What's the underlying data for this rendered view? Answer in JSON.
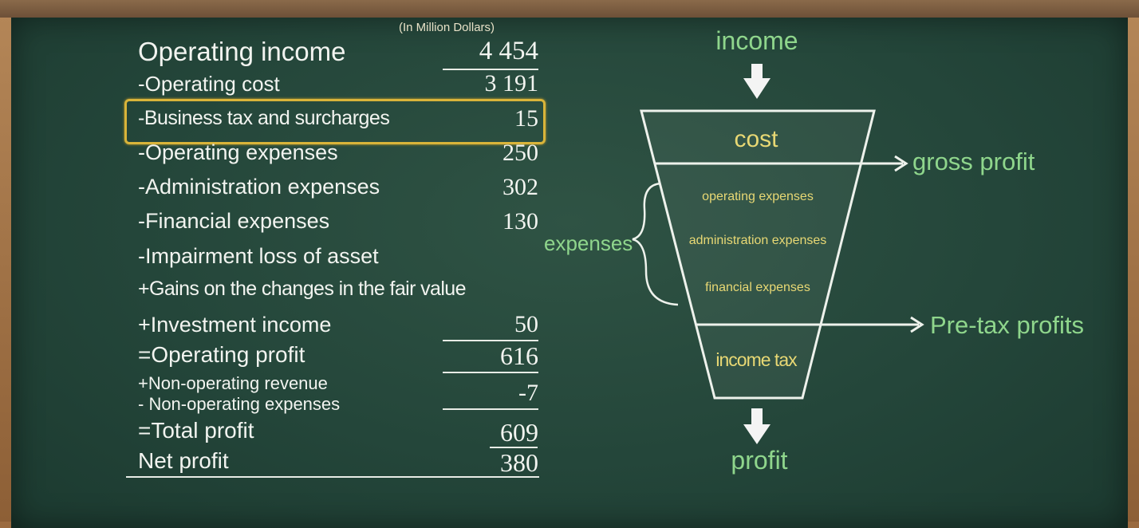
{
  "statement": {
    "unit_note": "(In Million Dollars)",
    "rows": [
      {
        "label": "Operating income",
        "value": "4 454"
      },
      {
        "label": "-Operating cost",
        "value": "3 191"
      },
      {
        "label": "-Business tax and surcharges",
        "value": "15"
      },
      {
        "label": "-Operating expenses",
        "value": "250"
      },
      {
        "label": "-Administration expenses",
        "value": "302"
      },
      {
        "label": "-Financial expenses",
        "value": "130"
      },
      {
        "label": "-Impairment loss of asset",
        "value": ""
      },
      {
        "label": "+Gains on the changes in the fair value",
        "value": ""
      },
      {
        "label": "+Investment income",
        "value": "50"
      },
      {
        "label": "=Operating profit",
        "value": "616"
      },
      {
        "label": "+Non-operating revenue",
        "value": ""
      },
      {
        "label": "- Non-operating expenses",
        "value": "-7"
      },
      {
        "label": "=Total profit",
        "value": "609"
      },
      {
        "label": "Net profit",
        "value": "380"
      }
    ],
    "highlight_color": "#d9b43a"
  },
  "funnel": {
    "top_label": "income",
    "cost_label": "cost",
    "gross_profit_label": "gross profit",
    "expenses_label": "expenses",
    "expense_items": [
      "operating expenses",
      "administration expenses",
      "financial expenses"
    ],
    "pretax_label": "Pre-tax profits",
    "income_tax_label": "income tax",
    "bottom_label": "profit",
    "label_color": "#8fd68c",
    "inner_text_color": "#e8d874"
  }
}
